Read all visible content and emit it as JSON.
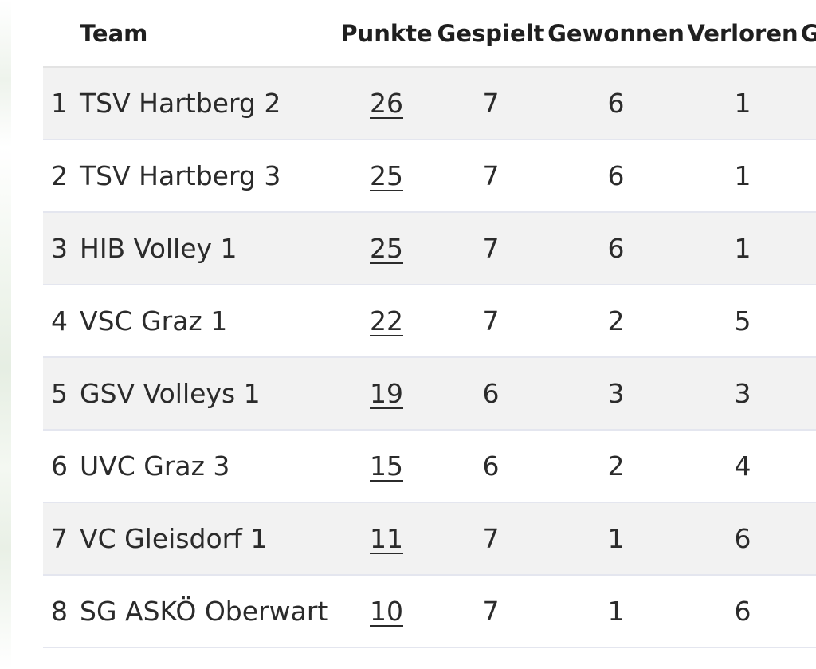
{
  "table": {
    "headers": {
      "rank": "",
      "team": "Team",
      "points": "Punkte",
      "played": "Gespielt",
      "won": "Gewonnen",
      "lost": "Verloren",
      "extra": "G"
    },
    "rows": [
      {
        "rank": "1",
        "team": "TSV Hartberg 2",
        "points": "26",
        "played": "7",
        "won": "6",
        "lost": "1"
      },
      {
        "rank": "2",
        "team": "TSV Hartberg 3",
        "points": "25",
        "played": "7",
        "won": "6",
        "lost": "1"
      },
      {
        "rank": "3",
        "team": "HIB Volley 1",
        "points": "25",
        "played": "7",
        "won": "6",
        "lost": "1"
      },
      {
        "rank": "4",
        "team": "VSC Graz 1",
        "points": "22",
        "played": "7",
        "won": "2",
        "lost": "5"
      },
      {
        "rank": "5",
        "team": "GSV Volleys 1",
        "points": "19",
        "played": "6",
        "won": "3",
        "lost": "3"
      },
      {
        "rank": "6",
        "team": "UVC Graz 3",
        "points": "15",
        "played": "6",
        "won": "2",
        "lost": "4"
      },
      {
        "rank": "7",
        "team": "VC Gleisdorf 1",
        "points": "11",
        "played": "7",
        "won": "1",
        "lost": "6"
      },
      {
        "rank": "8",
        "team": "SG ASKÖ Oberwart",
        "points": "10",
        "played": "7",
        "won": "1",
        "lost": "6"
      }
    ]
  },
  "colors": {
    "row_shade": "#f2f2f2",
    "row_border": "#e4e6ef",
    "text": "#2b2b2b",
    "backdrop_green": "#e6eee3"
  }
}
